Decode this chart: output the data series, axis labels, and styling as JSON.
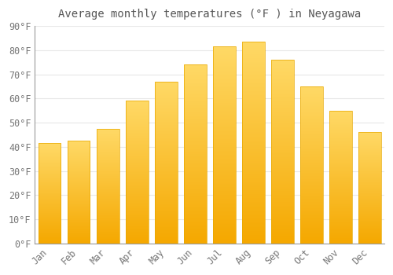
{
  "title": "Average monthly temperatures (°F ) in Neyagawa",
  "months": [
    "Jan",
    "Feb",
    "Mar",
    "Apr",
    "May",
    "Jun",
    "Jul",
    "Aug",
    "Sep",
    "Oct",
    "Nov",
    "Dec"
  ],
  "values": [
    41.5,
    42.5,
    47.5,
    59.0,
    67.0,
    74.0,
    81.5,
    83.5,
    76.0,
    65.0,
    55.0,
    46.0
  ],
  "bar_color_bottom": "#F5A800",
  "bar_color_top": "#FFD966",
  "ylim": [
    0,
    90
  ],
  "yticks": [
    0,
    10,
    20,
    30,
    40,
    50,
    60,
    70,
    80,
    90
  ],
  "ytick_labels": [
    "0°F",
    "10°F",
    "20°F",
    "30°F",
    "40°F",
    "50°F",
    "60°F",
    "70°F",
    "80°F",
    "90°F"
  ],
  "background_color": "#FFFFFF",
  "grid_color": "#E8E8E8",
  "title_fontsize": 10,
  "tick_fontsize": 8.5,
  "tick_color": "#777777",
  "font_family": "monospace",
  "bar_width": 0.78
}
